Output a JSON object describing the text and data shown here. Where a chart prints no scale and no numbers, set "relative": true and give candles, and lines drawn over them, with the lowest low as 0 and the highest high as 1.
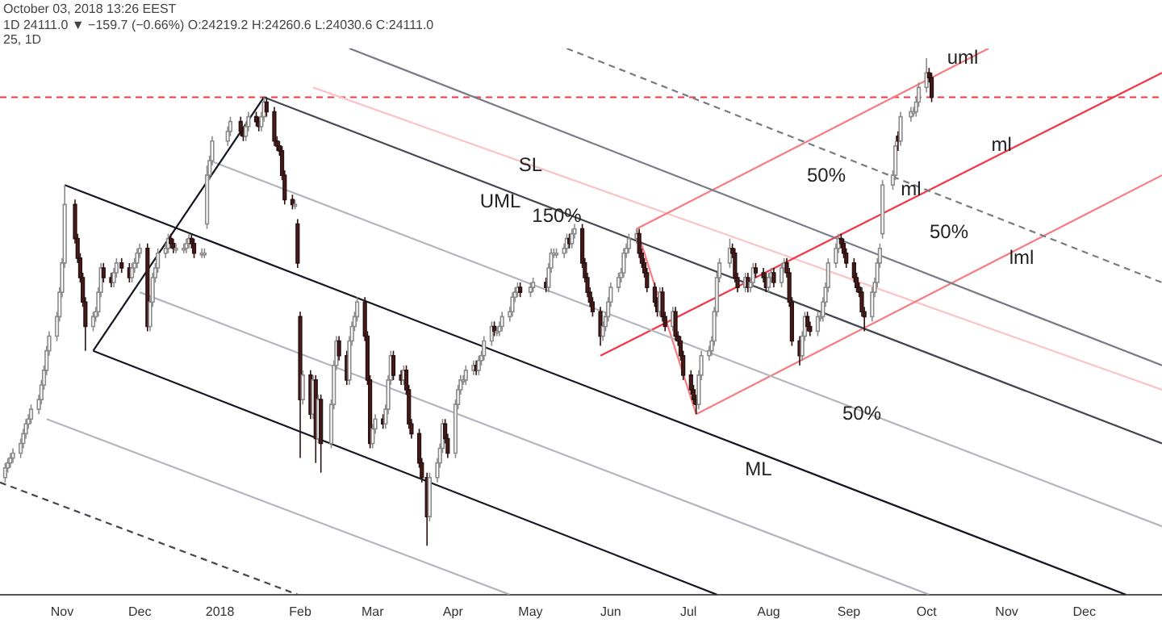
{
  "chart_data": {
    "type": "candlestick",
    "title": "October 03, 2018 13:26 EEST",
    "subtitle": "1D 24111.0 ▼ −159.7 (−0.66%) O:24219.2 H:24260.6 L:24030.6 C:24111.0",
    "relative": true,
    "legend": false,
    "grid": false,
    "tick_labels": "x",
    "xlim": [
      "2017-10-08",
      "2018-12-31"
    ],
    "xticks": [
      {
        "value": "2017-11-01",
        "label": "Nov"
      },
      {
        "value": "2017-12-01",
        "label": "Dec"
      },
      {
        "value": "2018-01-01",
        "label": "2018"
      },
      {
        "value": "2018-02-01",
        "label": "Feb"
      },
      {
        "value": "2018-03-01",
        "label": "Mar"
      },
      {
        "value": "2018-04-01",
        "label": "Apr"
      },
      {
        "value": "2018-05-01",
        "label": "May"
      },
      {
        "value": "2018-06-01",
        "label": "Jun"
      },
      {
        "value": "2018-07-01",
        "label": "Jul"
      },
      {
        "value": "2018-08-01",
        "label": "Aug"
      },
      {
        "value": "2018-09-01",
        "label": "Sep"
      },
      {
        "value": "2018-10-01",
        "label": "Oct"
      },
      {
        "value": "2018-11-01",
        "label": "Nov"
      },
      {
        "value": "2018-12-01",
        "label": "Dec"
      }
    ],
    "x": [
      "2017-10-10",
      "2017-10-11",
      "2017-10-12",
      "2017-10-13",
      "2017-10-16",
      "2017-10-17",
      "2017-10-18",
      "2017-10-19",
      "2017-10-20",
      "2017-10-23",
      "2017-10-24",
      "2017-10-25",
      "2017-10-26",
      "2017-10-27",
      "2017-10-30",
      "2017-10-31",
      "2017-11-01",
      "2017-11-02",
      "2017-11-06",
      "2017-11-07",
      "2017-11-08",
      "2017-11-09",
      "2017-11-10",
      "2017-11-13",
      "2017-11-14",
      "2017-11-15",
      "2017-11-16",
      "2017-11-17",
      "2017-11-20",
      "2017-11-21",
      "2017-11-22",
      "2017-11-24",
      "2017-11-27",
      "2017-11-28",
      "2017-11-29",
      "2017-11-30",
      "2017-12-01",
      "2017-12-04",
      "2017-12-05",
      "2017-12-06",
      "2017-12-07",
      "2017-12-08",
      "2017-12-11",
      "2017-12-12",
      "2017-12-13",
      "2017-12-14",
      "2017-12-15",
      "2017-12-18",
      "2017-12-19",
      "2017-12-20",
      "2017-12-21",
      "2017-12-22",
      "2017-12-25",
      "2017-12-26",
      "2017-12-27",
      "2017-12-28",
      "2017-12-29",
      "2018-01-04",
      "2018-01-05",
      "2018-01-09",
      "2018-01-10",
      "2018-01-11",
      "2018-01-12",
      "2018-01-15",
      "2018-01-16",
      "2018-01-17",
      "2018-01-18",
      "2018-01-19",
      "2018-01-22",
      "2018-01-23",
      "2018-01-24",
      "2018-01-25",
      "2018-01-26",
      "2018-01-29",
      "2018-01-30",
      "2018-01-31",
      "2018-02-01",
      "2018-02-02",
      "2018-02-05",
      "2018-02-06",
      "2018-02-07",
      "2018-02-08",
      "2018-02-09",
      "2018-02-13",
      "2018-02-14",
      "2018-02-15",
      "2018-02-16",
      "2018-02-19",
      "2018-02-20",
      "2018-02-21",
      "2018-02-22",
      "2018-02-23",
      "2018-02-26",
      "2018-02-27",
      "2018-02-28",
      "2018-03-01",
      "2018-03-02",
      "2018-03-05",
      "2018-03-06",
      "2018-03-07",
      "2018-03-08",
      "2018-03-09",
      "2018-03-12",
      "2018-03-13",
      "2018-03-14",
      "2018-03-15",
      "2018-03-16",
      "2018-03-19",
      "2018-03-20",
      "2018-03-22",
      "2018-03-23",
      "2018-03-26",
      "2018-03-27",
      "2018-03-28",
      "2018-03-29",
      "2018-03-30",
      "2018-04-02",
      "2018-04-03",
      "2018-04-04",
      "2018-04-05",
      "2018-04-06",
      "2018-04-09",
      "2018-04-10",
      "2018-04-11",
      "2018-04-12",
      "2018-04-13",
      "2018-04-16",
      "2018-04-17",
      "2018-04-18",
      "2018-04-19",
      "2018-04-20",
      "2018-04-23",
      "2018-04-24",
      "2018-04-25",
      "2018-04-26",
      "2018-04-27",
      "2018-05-01",
      "2018-05-02",
      "2018-05-07",
      "2018-05-08",
      "2018-05-09",
      "2018-05-10",
      "2018-05-11",
      "2018-05-14",
      "2018-05-15",
      "2018-05-16",
      "2018-05-17",
      "2018-05-18",
      "2018-05-21",
      "2018-05-22",
      "2018-05-23",
      "2018-05-24",
      "2018-05-25",
      "2018-05-28",
      "2018-05-29",
      "2018-05-30",
      "2018-05-31",
      "2018-06-01",
      "2018-06-04",
      "2018-06-05",
      "2018-06-06",
      "2018-06-07",
      "2018-06-08",
      "2018-06-11",
      "2018-06-12",
      "2018-06-13",
      "2018-06-14",
      "2018-06-15",
      "2018-06-18",
      "2018-06-19",
      "2018-06-20",
      "2018-06-21",
      "2018-06-22",
      "2018-06-25",
      "2018-06-26",
      "2018-06-27",
      "2018-06-28",
      "2018-06-29",
      "2018-07-02",
      "2018-07-03",
      "2018-07-04",
      "2018-07-05",
      "2018-07-06",
      "2018-07-09",
      "2018-07-10",
      "2018-07-11",
      "2018-07-12",
      "2018-07-13",
      "2018-07-17",
      "2018-07-18",
      "2018-07-19",
      "2018-07-20",
      "2018-07-23",
      "2018-07-24",
      "2018-07-25",
      "2018-07-26",
      "2018-07-27",
      "2018-07-30",
      "2018-07-31",
      "2018-08-01",
      "2018-08-02",
      "2018-08-03",
      "2018-08-06",
      "2018-08-07",
      "2018-08-08",
      "2018-08-09",
      "2018-08-10",
      "2018-08-13",
      "2018-08-14",
      "2018-08-15",
      "2018-08-16",
      "2018-08-17",
      "2018-08-20",
      "2018-08-21",
      "2018-08-22",
      "2018-08-23",
      "2018-08-24",
      "2018-08-27",
      "2018-08-28",
      "2018-08-29",
      "2018-08-30",
      "2018-08-31",
      "2018-09-03",
      "2018-09-04",
      "2018-09-05",
      "2018-09-06",
      "2018-09-07",
      "2018-09-10",
      "2018-09-11",
      "2018-09-12",
      "2018-09-13",
      "2018-09-14",
      "2018-09-18",
      "2018-09-19",
      "2018-09-20",
      "2018-09-21",
      "2018-09-25",
      "2018-09-26",
      "2018-09-27",
      "2018-09-28",
      "2018-10-01",
      "2018-10-02",
      "2018-10-03"
    ],
    "ohlc": [
      [
        0.14,
        0.17,
        0.13,
        0.16
      ],
      [
        0.16,
        0.18,
        0.15,
        0.17
      ],
      [
        0.17,
        0.19,
        0.16,
        0.18
      ],
      [
        0.18,
        0.2,
        0.17,
        0.19
      ],
      [
        0.19,
        0.22,
        0.18,
        0.21
      ],
      [
        0.21,
        0.24,
        0.2,
        0.23
      ],
      [
        0.23,
        0.26,
        0.22,
        0.25
      ],
      [
        0.25,
        0.27,
        0.24,
        0.26
      ],
      [
        0.26,
        0.29,
        0.25,
        0.28
      ],
      [
        0.28,
        0.31,
        0.27,
        0.3
      ],
      [
        0.3,
        0.34,
        0.29,
        0.33
      ],
      [
        0.33,
        0.37,
        0.32,
        0.36
      ],
      [
        0.36,
        0.41,
        0.35,
        0.4
      ],
      [
        0.4,
        0.44,
        0.39,
        0.43
      ],
      [
        0.43,
        0.48,
        0.42,
        0.47
      ],
      [
        0.47,
        0.53,
        0.46,
        0.52
      ],
      [
        0.52,
        0.59,
        0.51,
        0.58
      ],
      [
        0.58,
        0.74,
        0.57,
        0.7
      ],
      [
        0.7,
        0.71,
        0.62,
        0.63
      ],
      [
        0.63,
        0.64,
        0.58,
        0.59
      ],
      [
        0.59,
        0.6,
        0.54,
        0.55
      ],
      [
        0.55,
        0.56,
        0.49,
        0.5
      ],
      [
        0.5,
        0.51,
        0.4,
        0.45
      ],
      [
        0.45,
        0.48,
        0.44,
        0.47
      ],
      [
        0.47,
        0.49,
        0.46,
        0.48
      ],
      [
        0.48,
        0.53,
        0.47,
        0.52
      ],
      [
        0.52,
        0.58,
        0.51,
        0.57
      ],
      [
        0.57,
        0.58,
        0.54,
        0.55
      ],
      [
        0.55,
        0.56,
        0.53,
        0.54
      ],
      [
        0.54,
        0.57,
        0.53,
        0.56
      ],
      [
        0.56,
        0.59,
        0.55,
        0.58
      ],
      [
        0.58,
        0.59,
        0.56,
        0.57
      ],
      [
        0.57,
        0.58,
        0.54,
        0.55
      ],
      [
        0.55,
        0.58,
        0.54,
        0.57
      ],
      [
        0.57,
        0.59,
        0.56,
        0.58
      ],
      [
        0.58,
        0.61,
        0.57,
        0.6
      ],
      [
        0.6,
        0.62,
        0.59,
        0.61
      ],
      [
        0.61,
        0.62,
        0.44,
        0.45
      ],
      [
        0.45,
        0.51,
        0.44,
        0.5
      ],
      [
        0.5,
        0.56,
        0.49,
        0.55
      ],
      [
        0.55,
        0.58,
        0.54,
        0.57
      ],
      [
        0.57,
        0.61,
        0.56,
        0.6
      ],
      [
        0.6,
        0.62,
        0.59,
        0.61
      ],
      [
        0.61,
        0.64,
        0.6,
        0.63
      ],
      [
        0.63,
        0.64,
        0.61,
        0.62
      ],
      [
        0.62,
        0.63,
        0.6,
        0.61
      ],
      [
        0.61,
        0.62,
        0.6,
        0.61
      ],
      [
        0.61,
        0.62,
        0.6,
        0.61
      ],
      [
        0.61,
        0.63,
        0.6,
        0.62
      ],
      [
        0.62,
        0.64,
        0.61,
        0.63
      ],
      [
        0.63,
        0.64,
        0.61,
        0.62
      ],
      [
        0.62,
        0.63,
        0.59,
        0.6
      ],
      [
        0.6,
        0.61,
        0.59,
        0.6
      ],
      [
        0.6,
        0.61,
        0.59,
        0.6
      ],
      [
        0.66,
        0.78,
        0.65,
        0.76
      ],
      [
        0.76,
        0.8,
        0.75,
        0.79
      ],
      [
        0.79,
        0.84,
        0.78,
        0.83
      ],
      [
        0.83,
        0.86,
        0.82,
        0.85
      ],
      [
        0.85,
        0.88,
        0.84,
        0.87
      ],
      [
        0.87,
        0.88,
        0.84,
        0.85
      ],
      [
        0.85,
        0.86,
        0.83,
        0.84
      ],
      [
        0.84,
        0.87,
        0.83,
        0.86
      ],
      [
        0.86,
        0.89,
        0.85,
        0.88
      ],
      [
        0.88,
        0.89,
        0.86,
        0.87
      ],
      [
        0.87,
        0.88,
        0.85,
        0.86
      ],
      [
        0.86,
        0.89,
        0.85,
        0.88
      ],
      [
        0.88,
        0.92,
        0.87,
        0.91
      ],
      [
        0.91,
        0.92,
        0.88,
        0.89
      ],
      [
        0.89,
        0.9,
        0.82,
        0.83
      ],
      [
        0.83,
        0.84,
        0.81,
        0.82
      ],
      [
        0.82,
        0.83,
        0.8,
        0.81
      ],
      [
        0.81,
        0.82,
        0.75,
        0.76
      ],
      [
        0.76,
        0.77,
        0.7,
        0.71
      ],
      [
        0.71,
        0.72,
        0.69,
        0.7
      ],
      [
        0.7,
        0.71,
        0.69,
        0.7
      ],
      [
        0.66,
        0.67,
        0.57,
        0.58
      ],
      [
        0.47,
        0.48,
        0.18,
        0.3
      ],
      [
        0.3,
        0.36,
        0.29,
        0.35
      ],
      [
        0.35,
        0.36,
        0.26,
        0.27
      ],
      [
        0.27,
        0.35,
        0.26,
        0.34
      ],
      [
        0.34,
        0.35,
        0.17,
        0.22
      ],
      [
        0.22,
        0.31,
        0.21,
        0.3
      ],
      [
        0.3,
        0.31,
        0.15,
        0.21
      ],
      [
        0.21,
        0.3,
        0.2,
        0.29
      ],
      [
        0.29,
        0.38,
        0.28,
        0.37
      ],
      [
        0.37,
        0.43,
        0.36,
        0.42
      ],
      [
        0.42,
        0.43,
        0.38,
        0.39
      ],
      [
        0.39,
        0.4,
        0.33,
        0.34
      ],
      [
        0.34,
        0.43,
        0.33,
        0.42
      ],
      [
        0.42,
        0.46,
        0.41,
        0.45
      ],
      [
        0.45,
        0.48,
        0.44,
        0.47
      ],
      [
        0.47,
        0.51,
        0.46,
        0.5
      ],
      [
        0.5,
        0.51,
        0.42,
        0.43
      ],
      [
        0.43,
        0.44,
        0.33,
        0.34
      ],
      [
        0.34,
        0.35,
        0.2,
        0.21
      ],
      [
        0.21,
        0.25,
        0.2,
        0.24
      ],
      [
        0.24,
        0.27,
        0.23,
        0.26
      ],
      [
        0.26,
        0.27,
        0.24,
        0.25
      ],
      [
        0.25,
        0.29,
        0.24,
        0.28
      ],
      [
        0.28,
        0.35,
        0.27,
        0.34
      ],
      [
        0.34,
        0.4,
        0.33,
        0.39
      ],
      [
        0.39,
        0.4,
        0.34,
        0.35
      ],
      [
        0.35,
        0.36,
        0.33,
        0.34
      ],
      [
        0.34,
        0.37,
        0.33,
        0.36
      ],
      [
        0.36,
        0.37,
        0.31,
        0.32
      ],
      [
        0.32,
        0.33,
        0.24,
        0.25
      ],
      [
        0.25,
        0.26,
        0.22,
        0.23
      ],
      [
        0.23,
        0.24,
        0.16,
        0.17
      ],
      [
        0.17,
        0.18,
        0.13,
        0.14
      ],
      [
        0.14,
        0.15,
        0,
        0.06
      ],
      [
        0.06,
        0.15,
        0.05,
        0.14
      ],
      [
        0.14,
        0.18,
        0.13,
        0.17
      ],
      [
        0.17,
        0.21,
        0.16,
        0.2
      ],
      [
        0.2,
        0.26,
        0.19,
        0.25
      ],
      [
        0.25,
        0.26,
        0.21,
        0.22
      ],
      [
        0.22,
        0.23,
        0.18,
        0.19
      ],
      [
        0.19,
        0.3,
        0.18,
        0.29
      ],
      [
        0.29,
        0.33,
        0.28,
        0.32
      ],
      [
        0.32,
        0.35,
        0.31,
        0.34
      ],
      [
        0.34,
        0.35,
        0.33,
        0.34
      ],
      [
        0.34,
        0.37,
        0.33,
        0.36
      ],
      [
        0.36,
        0.38,
        0.35,
        0.37
      ],
      [
        0.37,
        0.38,
        0.35,
        0.36
      ],
      [
        0.36,
        0.39,
        0.35,
        0.38
      ],
      [
        0.38,
        0.4,
        0.37,
        0.39
      ],
      [
        0.39,
        0.43,
        0.38,
        0.42
      ],
      [
        0.42,
        0.46,
        0.41,
        0.45
      ],
      [
        0.45,
        0.46,
        0.43,
        0.44
      ],
      [
        0.44,
        0.45,
        0.43,
        0.44
      ],
      [
        0.44,
        0.46,
        0.43,
        0.45
      ],
      [
        0.45,
        0.48,
        0.44,
        0.47
      ],
      [
        0.47,
        0.49,
        0.46,
        0.48
      ],
      [
        0.48,
        0.52,
        0.47,
        0.51
      ],
      [
        0.51,
        0.53,
        0.5,
        0.52
      ],
      [
        0.52,
        0.54,
        0.51,
        0.53
      ],
      [
        0.53,
        0.54,
        0.51,
        0.52
      ],
      [
        0.52,
        0.54,
        0.51,
        0.53
      ],
      [
        0.53,
        0.55,
        0.52,
        0.54
      ],
      [
        0.54,
        0.55,
        0.52,
        0.53
      ],
      [
        0.53,
        0.58,
        0.52,
        0.57
      ],
      [
        0.57,
        0.61,
        0.56,
        0.6
      ],
      [
        0.6,
        0.61,
        0.59,
        0.6
      ],
      [
        0.6,
        0.61,
        0.59,
        0.6
      ],
      [
        0.6,
        0.62,
        0.59,
        0.61
      ],
      [
        0.61,
        0.64,
        0.6,
        0.63
      ],
      [
        0.63,
        0.64,
        0.61,
        0.62
      ],
      [
        0.62,
        0.65,
        0.61,
        0.64
      ],
      [
        0.64,
        0.66,
        0.63,
        0.65
      ],
      [
        0.65,
        0.66,
        0.57,
        0.58
      ],
      [
        0.58,
        0.59,
        0.54,
        0.55
      ],
      [
        0.55,
        0.56,
        0.51,
        0.52
      ],
      [
        0.52,
        0.53,
        0.49,
        0.5
      ],
      [
        0.5,
        0.51,
        0.47,
        0.48
      ],
      [
        0.48,
        0.49,
        0.41,
        0.43
      ],
      [
        0.43,
        0.46,
        0.42,
        0.45
      ],
      [
        0.45,
        0.48,
        0.44,
        0.47
      ],
      [
        0.47,
        0.51,
        0.46,
        0.5
      ],
      [
        0.5,
        0.54,
        0.49,
        0.53
      ],
      [
        0.53,
        0.56,
        0.52,
        0.55
      ],
      [
        0.55,
        0.57,
        0.54,
        0.56
      ],
      [
        0.56,
        0.61,
        0.55,
        0.6
      ],
      [
        0.6,
        0.62,
        0.59,
        0.61
      ],
      [
        0.61,
        0.64,
        0.6,
        0.63
      ],
      [
        0.63,
        0.65,
        0.62,
        0.64
      ],
      [
        0.64,
        0.65,
        0.59,
        0.6
      ],
      [
        0.6,
        0.61,
        0.57,
        0.58
      ],
      [
        0.58,
        0.59,
        0.55,
        0.56
      ],
      [
        0.56,
        0.57,
        0.52,
        0.53
      ],
      [
        0.53,
        0.54,
        0.49,
        0.5
      ],
      [
        0.5,
        0.51,
        0.47,
        0.48
      ],
      [
        0.48,
        0.53,
        0.47,
        0.52
      ],
      [
        0.52,
        0.53,
        0.46,
        0.47
      ],
      [
        0.47,
        0.48,
        0.44,
        0.45
      ],
      [
        0.45,
        0.49,
        0.44,
        0.48
      ],
      [
        0.48,
        0.49,
        0.42,
        0.43
      ],
      [
        0.43,
        0.44,
        0.41,
        0.42
      ],
      [
        0.42,
        0.43,
        0.38,
        0.39
      ],
      [
        0.39,
        0.4,
        0.34,
        0.35
      ],
      [
        0.35,
        0.36,
        0.31,
        0.32
      ],
      [
        0.32,
        0.33,
        0.29,
        0.3
      ],
      [
        0.3,
        0.31,
        0.27,
        0.29
      ],
      [
        0.29,
        0.36,
        0.28,
        0.35
      ],
      [
        0.35,
        0.4,
        0.34,
        0.39
      ],
      [
        0.39,
        0.41,
        0.38,
        0.4
      ],
      [
        0.4,
        0.43,
        0.39,
        0.42
      ],
      [
        0.42,
        0.49,
        0.41,
        0.48
      ],
      [
        0.48,
        0.56,
        0.47,
        0.55
      ],
      [
        0.55,
        0.59,
        0.54,
        0.58
      ],
      [
        0.58,
        0.63,
        0.57,
        0.61
      ],
      [
        0.61,
        0.62,
        0.59,
        0.6
      ],
      [
        0.6,
        0.61,
        0.54,
        0.55
      ],
      [
        0.55,
        0.56,
        0.52,
        0.53
      ],
      [
        0.53,
        0.56,
        0.52,
        0.55
      ],
      [
        0.55,
        0.56,
        0.52,
        0.53
      ],
      [
        0.53,
        0.55,
        0.52,
        0.54
      ],
      [
        0.54,
        0.58,
        0.53,
        0.57
      ],
      [
        0.57,
        0.58,
        0.55,
        0.56
      ],
      [
        0.56,
        0.57,
        0.54,
        0.55
      ],
      [
        0.55,
        0.56,
        0.52,
        0.53
      ],
      [
        0.53,
        0.56,
        0.52,
        0.55
      ],
      [
        0.55,
        0.57,
        0.54,
        0.56
      ],
      [
        0.56,
        0.57,
        0.53,
        0.54
      ],
      [
        0.54,
        0.58,
        0.53,
        0.57
      ],
      [
        0.57,
        0.59,
        0.56,
        0.58
      ],
      [
        0.58,
        0.59,
        0.55,
        0.56
      ],
      [
        0.56,
        0.57,
        0.49,
        0.5
      ],
      [
        0.5,
        0.51,
        0.41,
        0.42
      ],
      [
        0.42,
        0.43,
        0.37,
        0.39
      ],
      [
        0.39,
        0.44,
        0.38,
        0.43
      ],
      [
        0.43,
        0.48,
        0.42,
        0.47
      ],
      [
        0.47,
        0.48,
        0.44,
        0.45
      ],
      [
        0.45,
        0.46,
        0.43,
        0.44
      ],
      [
        0.44,
        0.48,
        0.43,
        0.47
      ],
      [
        0.47,
        0.48,
        0.46,
        0.47
      ],
      [
        0.47,
        0.51,
        0.46,
        0.5
      ],
      [
        0.5,
        0.54,
        0.49,
        0.53
      ],
      [
        0.53,
        0.59,
        0.52,
        0.58
      ],
      [
        0.58,
        0.62,
        0.57,
        0.61
      ],
      [
        0.61,
        0.64,
        0.6,
        0.63
      ],
      [
        0.63,
        0.64,
        0.61,
        0.62
      ],
      [
        0.62,
        0.63,
        0.59,
        0.6
      ],
      [
        0.6,
        0.61,
        0.57,
        0.58
      ],
      [
        0.58,
        0.59,
        0.54,
        0.55
      ],
      [
        0.55,
        0.56,
        0.52,
        0.53
      ],
      [
        0.53,
        0.54,
        0.51,
        0.52
      ],
      [
        0.52,
        0.53,
        0.47,
        0.48
      ],
      [
        0.48,
        0.49,
        0.44,
        0.47
      ],
      [
        0.47,
        0.53,
        0.46,
        0.52
      ],
      [
        0.52,
        0.55,
        0.51,
        0.54
      ],
      [
        0.54,
        0.59,
        0.53,
        0.58
      ],
      [
        0.58,
        0.62,
        0.57,
        0.61
      ],
      [
        0.64,
        0.75,
        0.63,
        0.74
      ],
      [
        0.74,
        0.77,
        0.73,
        0.76
      ],
      [
        0.76,
        0.83,
        0.75,
        0.82
      ],
      [
        0.84,
        0.85,
        0.81,
        0.83
      ],
      [
        0.83,
        0.89,
        0.82,
        0.88
      ],
      [
        0.88,
        0.9,
        0.87,
        0.89
      ],
      [
        0.89,
        0.9,
        0.88,
        0.89
      ],
      [
        0.89,
        0.92,
        0.88,
        0.91
      ],
      [
        0.91,
        0.95,
        0.9,
        0.94
      ],
      [
        0.94,
        1,
        0.93,
        0.97
      ],
      [
        0.97,
        0.98,
        0.95,
        0.96
      ],
      [
        0.96,
        0.97,
        0.91,
        0.92
      ]
    ],
    "series": [
      {
        "type": "line",
        "color": "#131722",
        "x": [
          "2017-11-13",
          "2018-01-18"
        ],
        "values": [
          0.4,
          0.92
        ]
      },
      {
        "type": "line",
        "color": "#131722",
        "x": [
          "2017-11-02",
          "2018-12-17"
        ],
        "values": [
          0.74,
          -0.1
        ]
      },
      {
        "type": "line",
        "color": "#131722",
        "x": [
          "2017-11-13",
          "2018-07-12"
        ],
        "values": [
          0.4,
          -0.1
        ]
      },
      {
        "type": "line",
        "color": "#434651",
        "x": [
          "2018-01-18",
          "2018-12-31"
        ],
        "values": [
          0.92,
          0.21
        ]
      },
      {
        "type": "line",
        "color": "#b2b5be",
        "x": [
          "2017-12-28",
          "2018-12-31"
        ],
        "values": [
          0.79,
          0.04
        ]
      },
      {
        "type": "line",
        "color": "#b2b5be",
        "x": [
          "2017-10-26",
          "2018-04-23"
        ],
        "values": [
          0.26,
          -0.1
        ]
      },
      {
        "type": "line",
        "color": "#b2b5be",
        "x": [
          "2017-12-01",
          "2018-10-02"
        ],
        "values": [
          0.52,
          -0.1
        ]
      },
      {
        "type": "line",
        "color": "#434651",
        "line_style": "dashed",
        "x": [
          "2017-10-08",
          "2018-01-31"
        ],
        "values": [
          0.13,
          -0.1
        ]
      },
      {
        "type": "line",
        "color": "#787b86",
        "x": [
          "2018-02-20",
          "2018-12-31"
        ],
        "values": [
          1.02,
          0.37
        ]
      },
      {
        "type": "line",
        "color": "#787b86",
        "line_style": "dashed",
        "x": [
          "2018-05-15",
          "2018-12-31"
        ],
        "values": [
          1.02,
          0.54
        ]
      },
      {
        "type": "line",
        "color": "#f23645",
        "x": [
          "2018-05-28",
          "2018-12-31"
        ],
        "values": [
          0.39,
          0.97
        ]
      },
      {
        "type": "line",
        "color": "#f77c80",
        "x": [
          "2018-06-11",
          "2018-07-04"
        ],
        "values": [
          0.65,
          0.27
        ]
      },
      {
        "type": "line",
        "color": "#f77c80",
        "x": [
          "2018-06-11",
          "2018-10-25"
        ],
        "values": [
          0.65,
          1.02
        ]
      },
      {
        "type": "line",
        "color": "#f77c80",
        "x": [
          "2018-07-04",
          "2018-12-31"
        ],
        "values": [
          0.27,
          0.76
        ]
      },
      {
        "type": "line",
        "color": "#fbc4c6",
        "x": [
          "2018-02-06",
          "2018-12-31"
        ],
        "values": [
          0.94,
          0.32
        ]
      }
    ],
    "ref_lines": [
      {
        "axis": "y",
        "value": 0.92,
        "color": "#f23645",
        "line_style": "dashed"
      }
    ],
    "annotations": [
      "25, 1D",
      "UML",
      "50%",
      "50%",
      "ML",
      "150%",
      "lml",
      {
        "text": "SL",
        "x": "2018-05-01",
        "y": 0.78
      },
      {
        "text": "uml",
        "x": "2018-10-15",
        "y": 1.0
      },
      {
        "text": "ml",
        "x": "2018-10-30",
        "y": 0.82
      },
      {
        "text": "ml",
        "x": "2018-09-25",
        "y": 0.73
      },
      {
        "text": "50%",
        "x": "2018-09-06",
        "y": 0.27
      }
    ]
  }
}
